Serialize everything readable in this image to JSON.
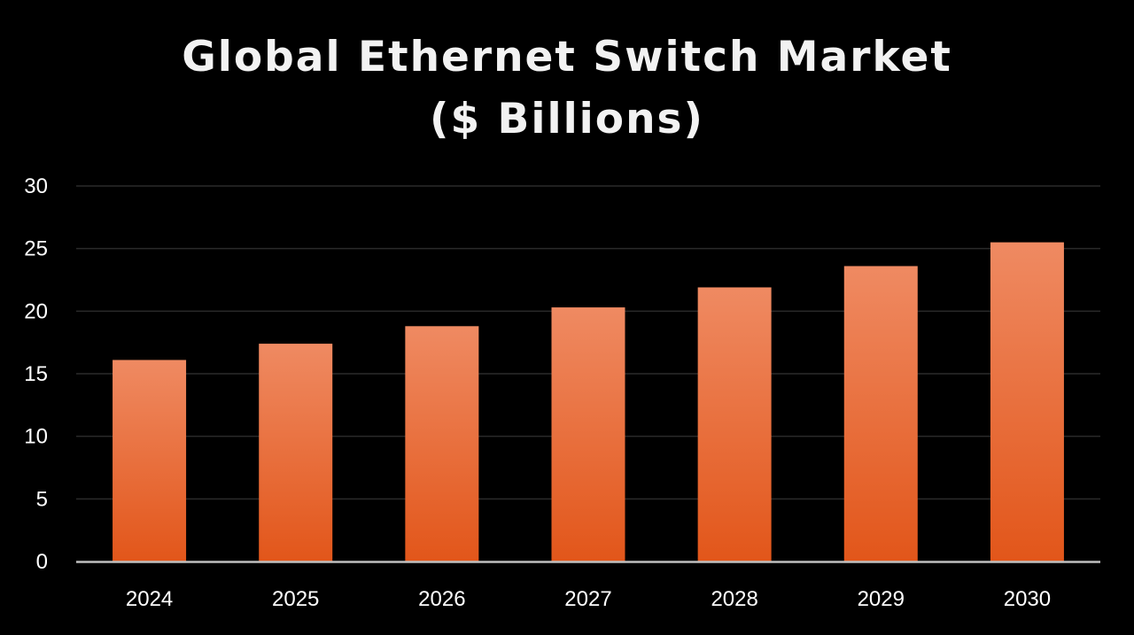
{
  "chart_data": {
    "type": "bar",
    "title_line1": "Global Ethernet Switch Market",
    "title_line2": "($ Billions)",
    "categories": [
      "2024",
      "2025",
      "2026",
      "2027",
      "2028",
      "2029",
      "2030"
    ],
    "values": [
      16.1,
      17.4,
      18.8,
      20.3,
      21.9,
      23.6,
      25.5
    ],
    "ylim": [
      0,
      30
    ],
    "yticks": [
      0,
      5,
      10,
      15,
      20,
      25,
      30
    ],
    "grid": true,
    "xlabel": "",
    "ylabel": "",
    "colors": {
      "background": "#000000",
      "bar_top": "#ef8a62",
      "bar_bottom": "#e2561a",
      "grid": "#2a2a2a",
      "axis": "#bfbfbf",
      "text": "#ffffff"
    }
  }
}
